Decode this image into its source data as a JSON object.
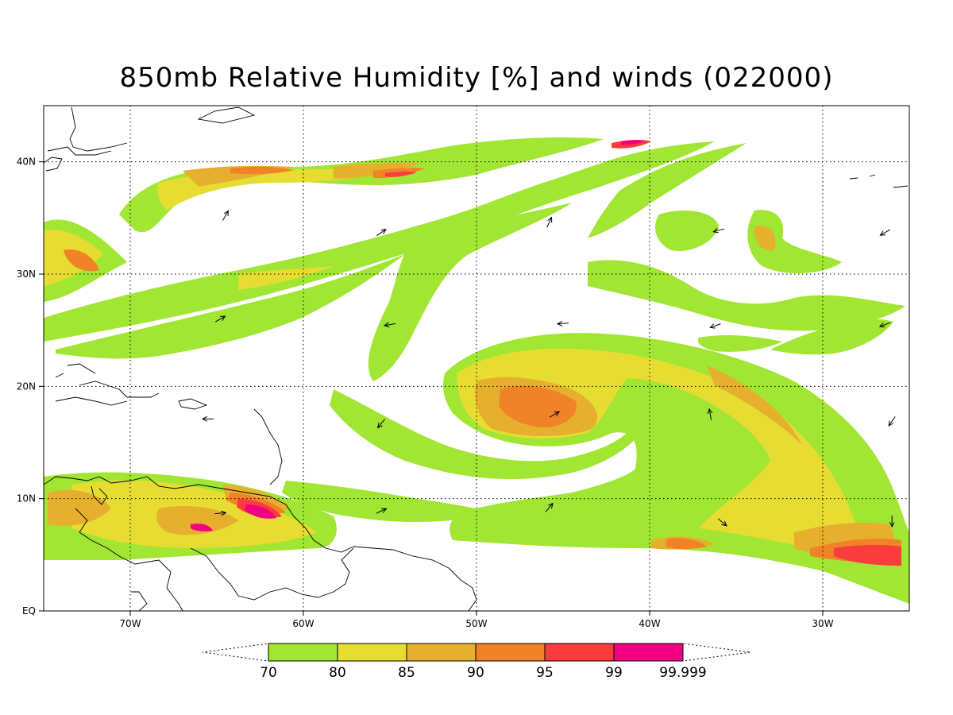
{
  "title": "850mb Relative Humidity [%] and winds (022000)",
  "map": {
    "lon_range": [
      -75,
      -25
    ],
    "lat_range": [
      0,
      45
    ],
    "lon_ticks": [
      {
        "lon": -70,
        "label": "70W"
      },
      {
        "lon": -60,
        "label": "60W"
      },
      {
        "lon": -50,
        "label": "50W"
      },
      {
        "lon": -40,
        "label": "40W"
      },
      {
        "lon": -30,
        "label": "30W"
      }
    ],
    "lat_ticks": [
      {
        "lat": 0,
        "label": "EQ"
      },
      {
        "lat": 10,
        "label": "10N"
      },
      {
        "lat": 20,
        "label": "20N"
      },
      {
        "lat": 30,
        "label": "30N"
      },
      {
        "lat": 40,
        "label": "40N"
      }
    ],
    "grid": "dotted",
    "colorbar": {
      "levels": [
        "70",
        "80",
        "85",
        "90",
        "95",
        "99",
        "99.999"
      ],
      "colors": [
        "#a0e632",
        "#e6dc32",
        "#e6af2d",
        "#f08228",
        "#fa3c3c",
        "#f00082"
      ],
      "extends": "both"
    },
    "features": {
      "storm_center": {
        "lon": -46,
        "lat": 18,
        "label_visible": false
      },
      "color_keys": {
        "rh70": "#a0e632",
        "rh80": "#e6dc32",
        "rh85": "#e6af2d",
        "rh90": "#f08228",
        "rh95": "#fa3c3c",
        "rh99": "#f00082"
      }
    },
    "wind_arrows": [
      {
        "lon": -64.5,
        "lat": 35.2,
        "dir": 60
      },
      {
        "lon": -55.5,
        "lat": 33.7,
        "dir": 35
      },
      {
        "lon": -45.8,
        "lat": 34.6,
        "dir": 65
      },
      {
        "lon": -36,
        "lat": 33.9,
        "dir": 195
      },
      {
        "lon": -26.4,
        "lat": 33.7,
        "dir": 210
      },
      {
        "lon": -64.8,
        "lat": 26.0,
        "dir": 30
      },
      {
        "lon": -55.0,
        "lat": 25.5,
        "dir": 190
      },
      {
        "lon": -45.0,
        "lat": 25.6,
        "dir": 185
      },
      {
        "lon": -36.2,
        "lat": 25.4,
        "dir": 200
      },
      {
        "lon": -26.4,
        "lat": 25.5,
        "dir": 200
      },
      {
        "lon": -65.5,
        "lat": 17.1,
        "dir": 180
      },
      {
        "lon": -55.5,
        "lat": 16.7,
        "dir": 230
      },
      {
        "lon": -45.5,
        "lat": 17.5,
        "dir": 30
      },
      {
        "lon": -36.5,
        "lat": 17.5,
        "dir": 100
      },
      {
        "lon": -26.0,
        "lat": 16.9,
        "dir": 235
      },
      {
        "lon": -64.8,
        "lat": 8.7,
        "dir": 5
      },
      {
        "lon": -55.5,
        "lat": 8.9,
        "dir": 25
      },
      {
        "lon": -45.8,
        "lat": 9.2,
        "dir": 50
      },
      {
        "lon": -35.8,
        "lat": 7.9,
        "dir": 320
      },
      {
        "lon": -26.0,
        "lat": 8.0,
        "dir": 270
      }
    ]
  }
}
